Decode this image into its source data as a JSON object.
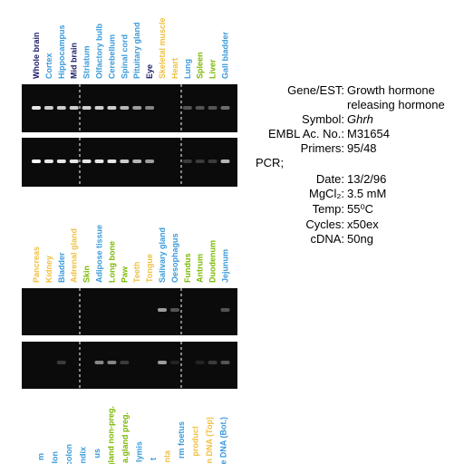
{
  "gel_top": {
    "lanes": [
      {
        "label": "Whole brain",
        "color": "#1b1b6b"
      },
      {
        "label": "Cortex",
        "color": "#3a9ad9"
      },
      {
        "label": "Hippocampus",
        "color": "#3a9ad9"
      },
      {
        "label": "Mid brain",
        "color": "#1b1b6b"
      },
      {
        "label": "Striatum",
        "color": "#3a9ad9"
      },
      {
        "label": "Olfactory bulb",
        "color": "#3a9ad9"
      },
      {
        "label": "Cerebellum",
        "color": "#3a9ad9"
      },
      {
        "label": "Spinal cord",
        "color": "#3a9ad9"
      },
      {
        "label": "Pituitary gland",
        "color": "#3a9ad9"
      },
      {
        "label": "Eye",
        "color": "#1b1b6b"
      },
      {
        "label": "Skeletal muscle",
        "color": "#f0c040"
      },
      {
        "label": "Heart",
        "color": "#f0c040"
      },
      {
        "label": "Lung",
        "color": "#3a9ad9"
      },
      {
        "label": "Spleen",
        "color": "#7ab800"
      },
      {
        "label": "Liver",
        "color": "#7ab800"
      },
      {
        "label": "Gall bladder",
        "color": "#3a9ad9"
      }
    ]
  },
  "gel_bottom": {
    "lanes": [
      {
        "label": "Pancreas",
        "color": "#f0c040"
      },
      {
        "label": "Kidney",
        "color": "#f0c040"
      },
      {
        "label": "Bladder",
        "color": "#3a9ad9"
      },
      {
        "label": "Adrenal gland",
        "color": "#f0c040"
      },
      {
        "label": "Skin",
        "color": "#7ab800"
      },
      {
        "label": "Adipose tissue",
        "color": "#3a9ad9"
      },
      {
        "label": "Long bone",
        "color": "#7ab800"
      },
      {
        "label": "Paw",
        "color": "#7ab800"
      },
      {
        "label": "Teeth",
        "color": "#f0c040"
      },
      {
        "label": "Tongue",
        "color": "#f0c040"
      },
      {
        "label": "Salivary gland",
        "color": "#3a9ad9"
      },
      {
        "label": "Oesophagus",
        "color": "#3a9ad9"
      },
      {
        "label": "Fundus",
        "color": "#7ab800"
      },
      {
        "label": "Antrum",
        "color": "#7ab800"
      },
      {
        "label": "Duodenum",
        "color": "#7ab800"
      },
      {
        "label": "Jejunum",
        "color": "#3a9ad9"
      }
    ]
  },
  "cut_labels": [
    {
      "label": "m",
      "color": "#3a9ad9"
    },
    {
      "label": "olon",
      "color": "#3a9ad9"
    },
    {
      "label": "colon",
      "color": "#3a9ad9"
    },
    {
      "label": "ndix",
      "color": "#3a9ad9"
    },
    {
      "label": "us",
      "color": "#3a9ad9"
    },
    {
      "label": "a.gland non-preg.",
      "color": "#7ab800"
    },
    {
      "label": "a.gland preg.",
      "color": "#7ab800"
    },
    {
      "label": "lymis",
      "color": "#3a9ad9"
    },
    {
      "label": "t",
      "color": "#3a9ad9"
    },
    {
      "label": "nta",
      "color": "#f0c040"
    },
    {
      "label": "rm foetus",
      "color": "#3a9ad9"
    },
    {
      "label": "product",
      "color": "#f0c040"
    },
    {
      "label": "n DNA (Top)",
      "color": "#f0c040"
    },
    {
      "label": "e DNA (Bot.)",
      "color": "#3a9ad9"
    }
  ],
  "info": {
    "gene_label": "Gene/EST:",
    "gene_value_1": "Growth hormone",
    "gene_value_2": "releasing hormone",
    "symbol_label": "Symbol:",
    "symbol_value": "Ghrh",
    "embl_label": "EMBL Ac. No.:",
    "embl_value": "M31654",
    "primers_label": "Primers:",
    "primers_value": "95/48",
    "pcr_label": "PCR;",
    "date_label": "Date:",
    "date_value": "13/2/96",
    "mgcl_label": "MgCl₂:",
    "mgcl_value": "3.5 mM",
    "temp_label": "Temp:",
    "temp_value": "55⁰C",
    "cycles_label": "Cycles:",
    "cycles_value": "x50ex",
    "cdna_label": "cDNA:",
    "cdna_value": "50ng"
  }
}
